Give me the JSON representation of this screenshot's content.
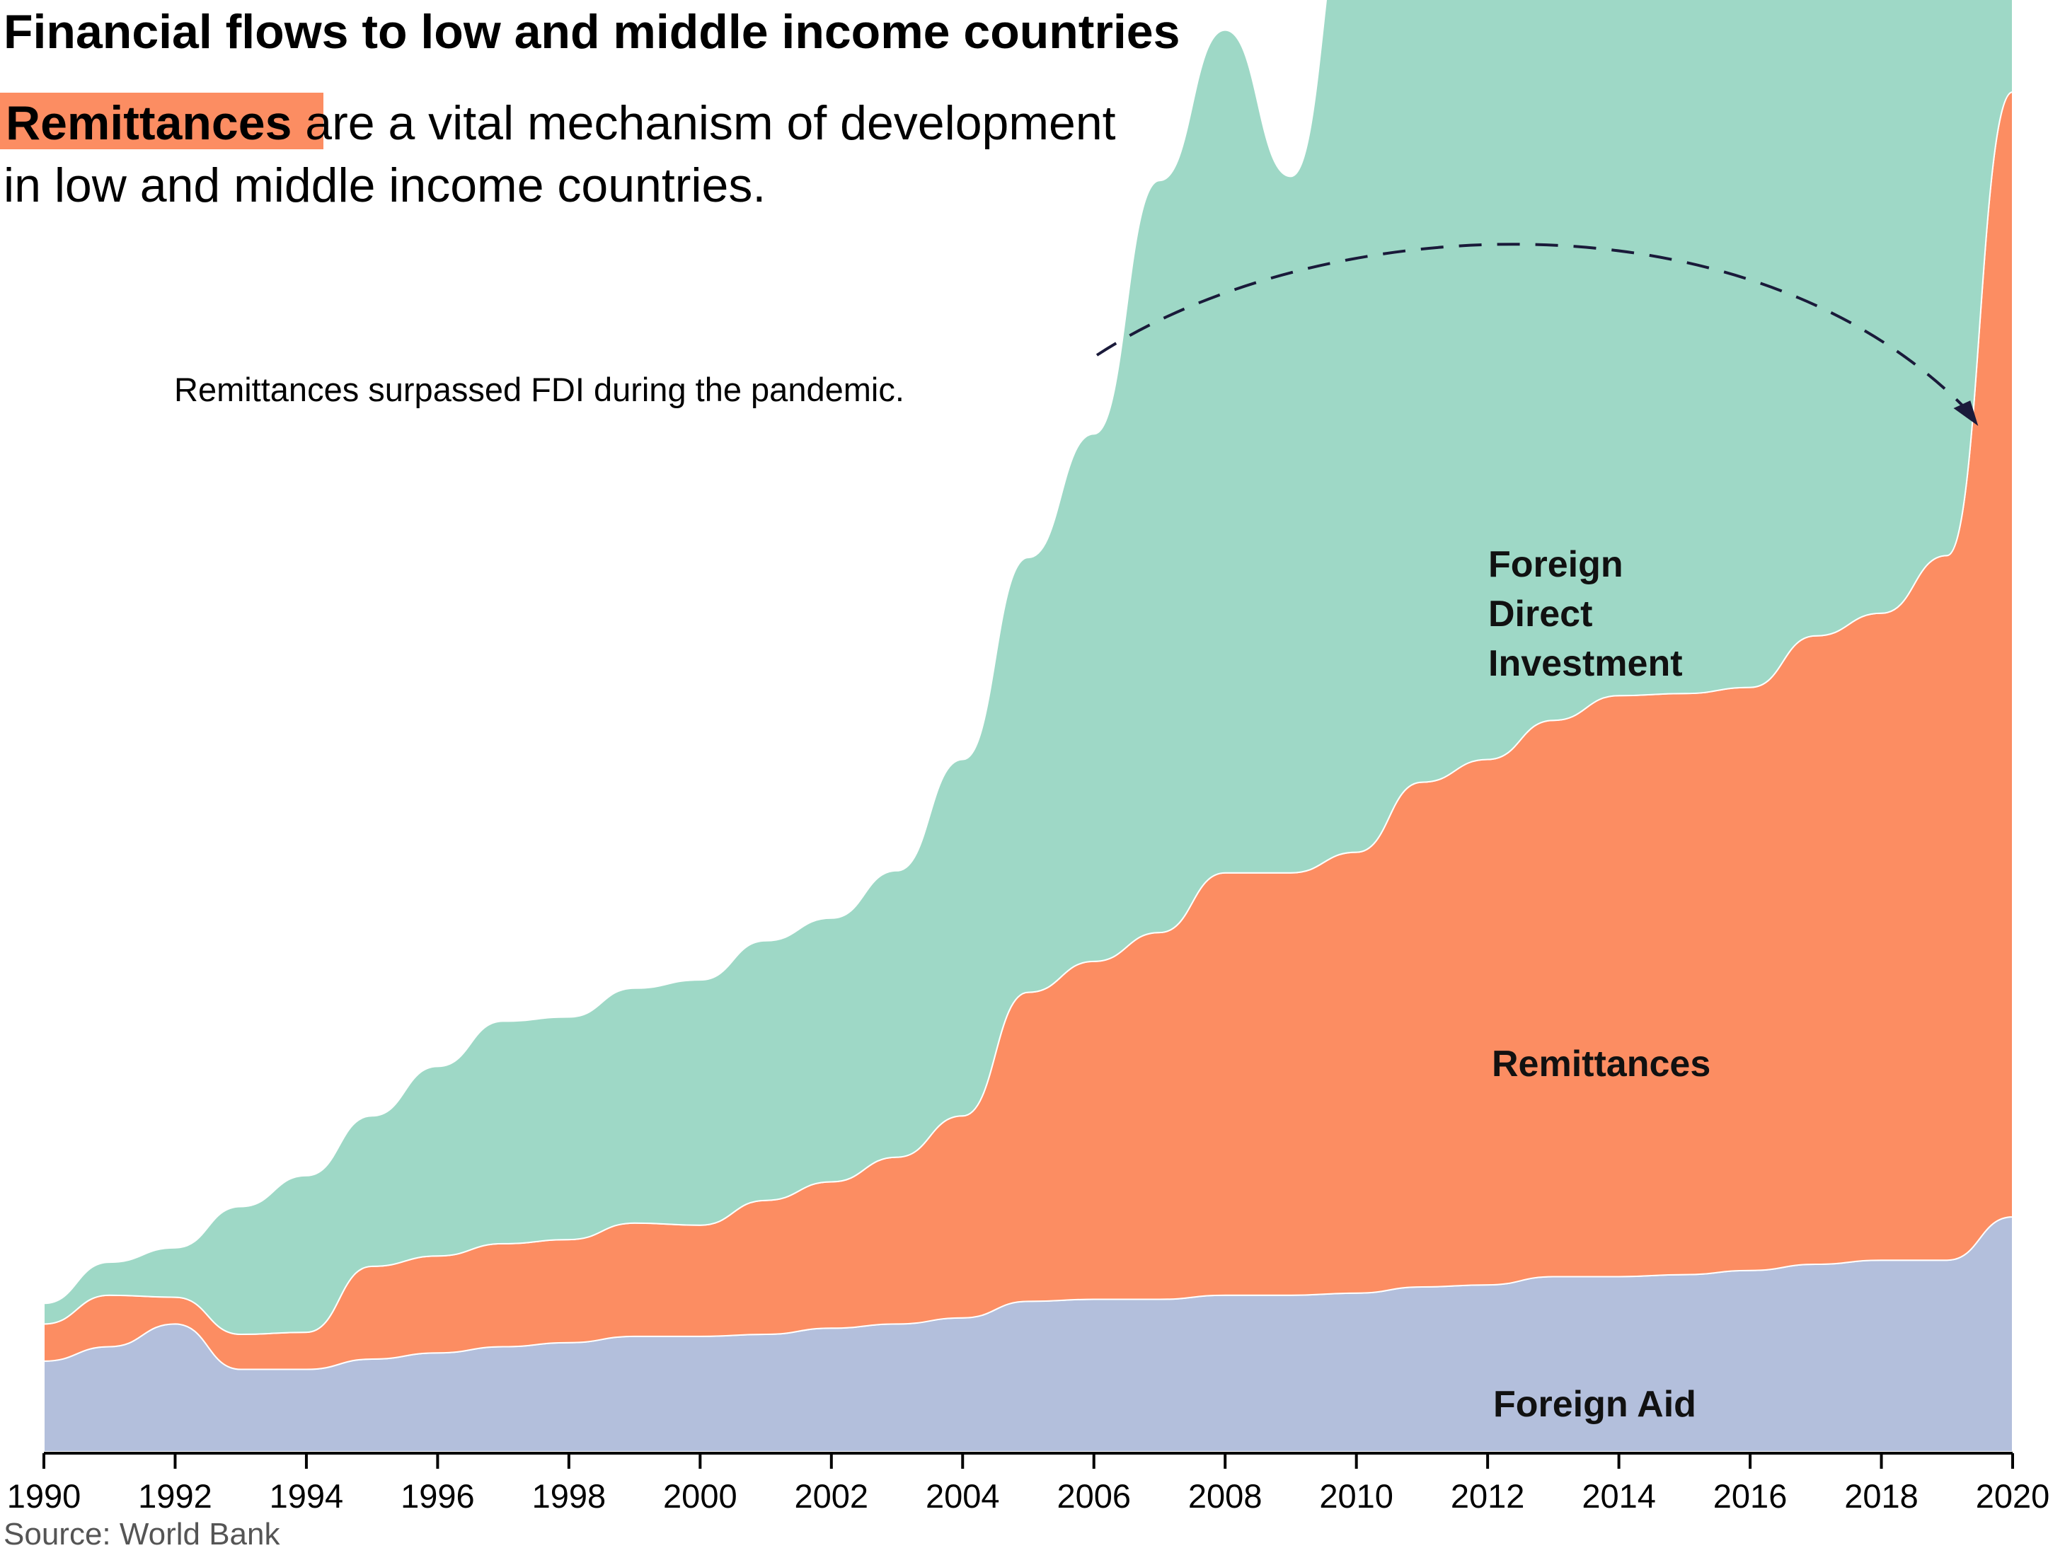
{
  "chart_data": {
    "type": "area",
    "title": "Financial flows to low and middle income countries",
    "subtitle": {
      "highlight": "Remittances",
      "line1_rest": " are a vital mechanism of development",
      "line2": "in low and middle income countries."
    },
    "source": "Source: World Bank",
    "annotation": "Remittances surpassed FDI during the pandemic.",
    "x_ticks": [
      "1990",
      "1992",
      "1994",
      "1996",
      "1998",
      "2000",
      "2002",
      "2004",
      "2006",
      "2008",
      "2010",
      "2012",
      "2014",
      "2016",
      "2018",
      "2020"
    ],
    "xlim": [
      1990,
      2020
    ],
    "ylim": [
      0,
      660
    ],
    "grid": false,
    "legend": "none",
    "x": [
      1990,
      1991,
      1992,
      1993,
      1994,
      1995,
      1996,
      1997,
      1998,
      1999,
      2000,
      2001,
      2002,
      2003,
      2004,
      2005,
      2006,
      2007,
      2008,
      2009,
      2010,
      2011,
      2012,
      2013,
      2014,
      2015,
      2016,
      2017,
      2018,
      2019,
      2020
    ],
    "series": [
      {
        "name": "Foreign Aid",
        "label": "Foreign Aid",
        "color": "#b3bfdc",
        "values": [
          44,
          51,
          62,
          40,
          40,
          45,
          48,
          51,
          53,
          56,
          56,
          57,
          60,
          62,
          65,
          73,
          74,
          74,
          76,
          76,
          77,
          80,
          81,
          85,
          85,
          86,
          88,
          91,
          93,
          93,
          114
        ]
      },
      {
        "name": "Remittances",
        "label": "Remittances",
        "color": "#fc8d62",
        "values": [
          18,
          25,
          13,
          17,
          18,
          45,
          47,
          50,
          50,
          55,
          54,
          65,
          71,
          81,
          98,
          150,
          164,
          178,
          205,
          205,
          214,
          245,
          255,
          270,
          282,
          282,
          283,
          305,
          314,
          342,
          546
        ]
      },
      {
        "name": "Foreign Direct Investment",
        "label_lines": [
          "Foreign",
          "Direct",
          "Investment"
        ],
        "color": "#9ed8c6",
        "values": [
          10,
          16,
          24,
          62,
          76,
          73,
          92,
          108,
          108,
          114,
          119,
          126,
          128,
          139,
          173,
          211,
          256,
          365,
          409,
          338,
          476,
          537,
          496,
          535,
          498,
          468,
          443,
          453,
          474,
          482,
          263
        ]
      }
    ]
  }
}
